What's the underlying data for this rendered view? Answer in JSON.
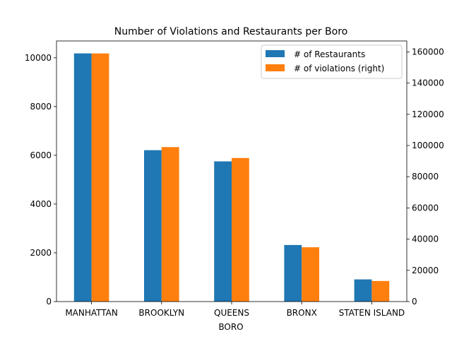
{
  "chart_data": {
    "type": "bar",
    "title": "Number of Violations and Restaurants per Boro",
    "xlabel": "BORO",
    "ylabel": "",
    "categories": [
      "MANHATTAN",
      "BROOKLYN",
      "QUEENS",
      "BRONX",
      "STATEN ISLAND"
    ],
    "series": [
      {
        "name": "# of Restaurants",
        "axis": "left",
        "color": "#1f77b4",
        "values": [
          10180,
          6210,
          5750,
          2320,
          910
        ]
      },
      {
        "name": "# of violations (right)",
        "axis": "right",
        "color": "#ff7f0e",
        "values": [
          159000,
          99000,
          92000,
          34800,
          13200
        ]
      }
    ],
    "ylim_left": [
      0,
      10690
    ],
    "yticks_left": [
      0,
      2000,
      4000,
      6000,
      8000,
      10000
    ],
    "ylim_right": [
      0,
      167000
    ],
    "yticks_right": [
      0,
      20000,
      40000,
      60000,
      80000,
      100000,
      120000,
      140000,
      160000
    ],
    "legend_position": "top-right",
    "grid": false
  }
}
